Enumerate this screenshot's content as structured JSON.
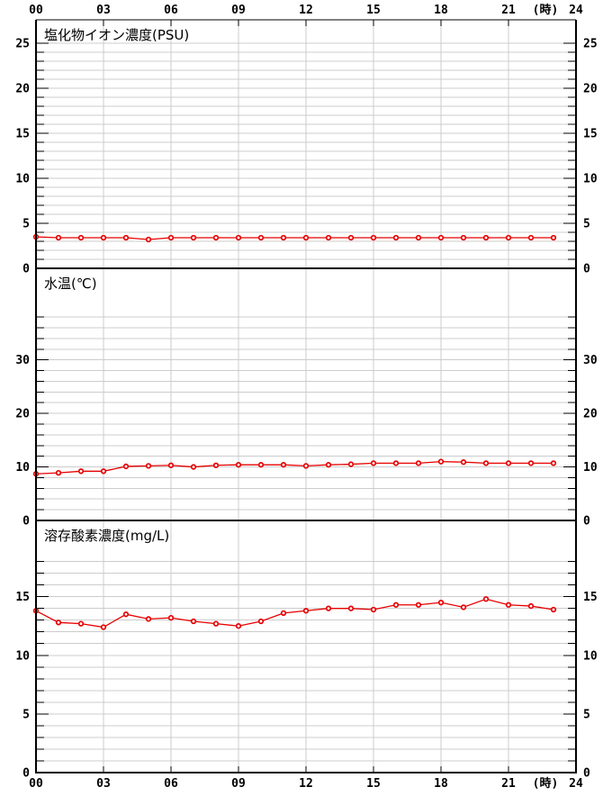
{
  "figure": {
    "description": "24-hour water quality monitoring chart, three stacked line panels"
  },
  "x_axis": {
    "xlim": [
      0,
      24
    ],
    "tick_step_hours": 3,
    "tick_labels": [
      "00",
      "03",
      "06",
      "09",
      "12",
      "15",
      "18",
      "21"
    ],
    "unit_label": "(時)",
    "last_label": "24"
  },
  "chart_data": [
    {
      "type": "line",
      "title": "塩化物イオン濃度(PSU)",
      "ylabel": "PSU",
      "x": [
        0,
        1,
        2,
        3,
        4,
        5,
        6,
        7,
        8,
        9,
        10,
        11,
        12,
        13,
        14,
        15,
        16,
        17,
        18,
        19,
        20,
        21,
        22,
        23
      ],
      "values": [
        3.5,
        3.4,
        3.4,
        3.4,
        3.4,
        3.2,
        3.4,
        3.4,
        3.4,
        3.4,
        3.4,
        3.4,
        3.4,
        3.4,
        3.4,
        3.4,
        3.4,
        3.4,
        3.4,
        3.4,
        3.4,
        3.4,
        3.4,
        3.4
      ],
      "ylim": [
        0,
        27.6
      ],
      "ytick_labels": [
        0,
        5,
        10,
        15,
        20,
        25
      ],
      "ytick_minor_step": 1,
      "ytick_max": 25,
      "grid": true,
      "legend": "none"
    },
    {
      "type": "line",
      "title": "水温(℃)",
      "ylabel": "℃",
      "x": [
        0,
        1,
        2,
        3,
        4,
        5,
        6,
        7,
        8,
        9,
        10,
        11,
        12,
        13,
        14,
        15,
        16,
        17,
        18,
        19,
        20,
        21,
        22,
        23
      ],
      "values": [
        8.7,
        8.9,
        9.2,
        9.2,
        10.1,
        10.2,
        10.3,
        10.0,
        10.3,
        10.4,
        10.4,
        10.4,
        10.2,
        10.4,
        10.5,
        10.7,
        10.7,
        10.7,
        11.0,
        10.9,
        10.7,
        10.7,
        10.7,
        10.7
      ],
      "ylim": [
        0,
        47.1
      ],
      "ytick_labels": [
        0,
        10,
        20,
        30
      ],
      "ytick_minor_step": 2,
      "ytick_max": 38,
      "grid": true,
      "legend": "none"
    },
    {
      "type": "line",
      "title": "溶存酸素濃度(mg/L)",
      "ylabel": "mg/L",
      "x": [
        0,
        1,
        2,
        3,
        4,
        5,
        6,
        7,
        8,
        9,
        10,
        11,
        12,
        13,
        14,
        15,
        16,
        17,
        18,
        19,
        20,
        21,
        22,
        23
      ],
      "values": [
        13.8,
        12.8,
        12.7,
        12.4,
        13.5,
        13.1,
        13.2,
        12.9,
        12.7,
        12.5,
        12.9,
        13.6,
        13.8,
        14.0,
        14.0,
        13.9,
        14.3,
        14.3,
        14.5,
        14.1,
        14.8,
        14.3,
        14.2,
        13.9
      ],
      "ylim": [
        0,
        21.5
      ],
      "ytick_labels": [
        0,
        5,
        10,
        15
      ],
      "ytick_minor_step": 1,
      "ytick_max": 18,
      "grid": true,
      "legend": "none"
    }
  ],
  "style": {
    "line_color": "#e60000",
    "marker_fill": "#ffffff",
    "grid_color": "#cccccc",
    "axis_color": "#000000",
    "background": "#ffffff"
  }
}
